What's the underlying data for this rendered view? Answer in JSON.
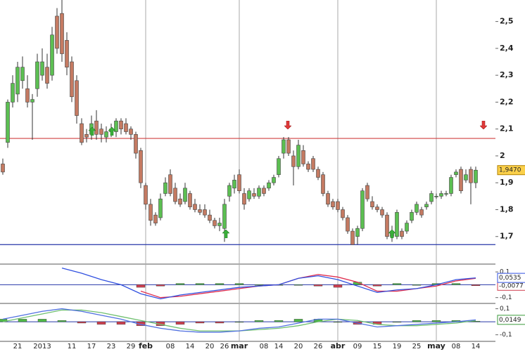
{
  "chart_data": [
    {
      "type": "candlestick",
      "categories": [
        null,
        null,
        null,
        "21",
        null,
        null,
        null,
        null,
        "2013",
        null,
        null,
        null,
        null,
        null,
        "11",
        null,
        null,
        null,
        "17",
        null,
        null,
        null,
        "23",
        null,
        null,
        null,
        "29",
        null,
        null,
        "feb",
        null,
        null,
        null,
        null,
        "08",
        null,
        null,
        null,
        "14",
        null,
        null,
        null,
        "20",
        null,
        null,
        "26",
        null,
        null,
        "mar",
        null,
        null,
        null,
        null,
        "08",
        null,
        null,
        "14",
        null,
        null,
        null,
        "20",
        null,
        null,
        null,
        "26",
        null,
        null,
        null,
        "abr",
        null,
        null,
        null,
        "09",
        null,
        null,
        null,
        "15",
        null,
        null,
        null,
        "19",
        null,
        null,
        null,
        "25",
        null,
        null,
        null,
        "may",
        null,
        null,
        null,
        "08",
        null,
        null,
        null,
        "14"
      ],
      "values": [
        [
          1.97,
          1.99,
          1.93,
          1.94
        ],
        [
          2.05,
          2.21,
          2.03,
          2.2
        ],
        [
          2.2,
          2.3,
          2.18,
          2.27
        ],
        [
          2.23,
          2.35,
          2.2,
          2.33
        ],
        [
          2.28,
          2.37,
          2.25,
          2.33
        ],
        [
          2.25,
          2.3,
          2.18,
          2.2
        ],
        [
          2.2,
          2.23,
          2.06,
          2.21
        ],
        [
          2.25,
          2.38,
          2.22,
          2.35
        ],
        [
          2.3,
          2.4,
          2.28,
          2.35
        ],
        [
          2.33,
          2.38,
          2.25,
          2.27
        ],
        [
          2.3,
          2.48,
          2.28,
          2.45
        ],
        [
          2.52,
          2.55,
          2.38,
          2.4
        ],
        [
          2.53,
          2.58,
          2.35,
          2.38
        ],
        [
          2.43,
          2.46,
          2.3,
          2.33
        ],
        [
          2.35,
          2.37,
          2.2,
          2.22
        ],
        [
          2.28,
          2.3,
          2.12,
          2.15
        ],
        [
          2.12,
          2.14,
          2.04,
          2.05
        ],
        [
          2.08,
          2.1,
          2.05,
          2.07
        ],
        [
          2.08,
          2.15,
          2.06,
          2.12
        ],
        [
          2.13,
          2.17,
          2.06,
          2.08
        ],
        [
          2.1,
          2.12,
          2.05,
          2.08
        ],
        [
          2.07,
          2.11,
          2.05,
          2.09
        ],
        [
          2.09,
          2.12,
          2.07,
          2.1
        ],
        [
          2.09,
          2.14,
          2.07,
          2.13
        ],
        [
          2.13,
          2.14,
          2.08,
          2.1
        ],
        [
          2.12,
          2.14,
          2.08,
          2.09
        ],
        [
          2.1,
          2.11,
          2.06,
          2.08
        ],
        [
          2.08,
          2.09,
          1.99,
          2.01
        ],
        [
          2.02,
          2.03,
          1.88,
          1.9
        ],
        [
          1.89,
          1.9,
          1.8,
          1.82
        ],
        [
          1.82,
          1.84,
          1.74,
          1.76
        ],
        [
          1.78,
          1.79,
          1.74,
          1.75
        ],
        [
          1.77,
          1.86,
          1.76,
          1.84
        ],
        [
          1.86,
          1.92,
          1.85,
          1.9
        ],
        [
          1.93,
          1.95,
          1.85,
          1.86
        ],
        [
          1.88,
          1.9,
          1.82,
          1.83
        ],
        [
          1.84,
          1.86,
          1.81,
          1.82
        ],
        [
          1.83,
          1.9,
          1.82,
          1.88
        ],
        [
          1.86,
          1.87,
          1.8,
          1.81
        ],
        [
          1.82,
          1.84,
          1.79,
          1.8
        ],
        [
          1.8,
          1.82,
          1.78,
          1.79
        ],
        [
          1.8,
          1.82,
          1.77,
          1.78
        ],
        [
          1.78,
          1.8,
          1.75,
          1.76
        ],
        [
          1.76,
          1.77,
          1.73,
          1.74
        ],
        [
          1.74,
          1.77,
          1.72,
          1.75
        ],
        [
          1.73,
          1.84,
          1.68,
          1.82
        ],
        [
          1.85,
          1.9,
          1.83,
          1.89
        ],
        [
          1.88,
          1.93,
          1.86,
          1.91
        ],
        [
          1.93,
          1.95,
          1.86,
          1.87
        ],
        [
          1.86,
          1.88,
          1.8,
          1.82
        ],
        [
          1.84,
          1.88,
          1.83,
          1.87
        ],
        [
          1.86,
          1.88,
          1.84,
          1.85
        ],
        [
          1.85,
          1.89,
          1.84,
          1.88
        ],
        [
          1.88,
          1.89,
          1.85,
          1.86
        ],
        [
          1.88,
          1.91,
          1.87,
          1.9
        ],
        [
          1.9,
          1.93,
          1.89,
          1.92
        ],
        [
          1.93,
          2.0,
          1.92,
          1.99
        ],
        [
          2.01,
          2.07,
          1.99,
          2.06
        ],
        [
          2.06,
          2.07,
          2.0,
          2.01
        ],
        [
          2.0,
          2.02,
          1.89,
          1.96
        ],
        [
          1.96,
          2.06,
          1.95,
          2.04
        ],
        [
          2.02,
          2.04,
          1.96,
          1.97
        ],
        [
          1.97,
          1.98,
          1.94,
          1.95
        ],
        [
          1.99,
          2.0,
          1.94,
          1.95
        ],
        [
          1.95,
          1.96,
          1.91,
          1.92
        ],
        [
          1.93,
          1.94,
          1.85,
          1.86
        ],
        [
          1.86,
          1.87,
          1.81,
          1.82
        ],
        [
          1.83,
          1.84,
          1.8,
          1.81
        ],
        [
          1.83,
          1.84,
          1.79,
          1.8
        ],
        [
          1.8,
          1.81,
          1.76,
          1.77
        ],
        [
          1.77,
          1.78,
          1.71,
          1.72
        ],
        [
          1.72,
          1.73,
          1.67,
          1.67
        ],
        [
          1.7,
          1.74,
          1.67,
          1.73
        ],
        [
          1.73,
          1.88,
          1.72,
          1.87
        ],
        [
          1.89,
          1.9,
          1.83,
          1.84
        ],
        [
          1.83,
          1.85,
          1.8,
          1.81
        ],
        [
          1.81,
          1.82,
          1.79,
          1.8
        ],
        [
          1.8,
          1.81,
          1.77,
          1.78
        ],
        [
          1.78,
          1.79,
          1.69,
          1.7
        ],
        [
          1.7,
          1.74,
          1.68,
          1.72
        ],
        [
          1.7,
          1.8,
          1.69,
          1.79
        ],
        [
          1.72,
          1.73,
          1.69,
          1.7
        ],
        [
          1.72,
          1.76,
          1.71,
          1.75
        ],
        [
          1.76,
          1.8,
          1.75,
          1.79
        ],
        [
          1.79,
          1.83,
          1.78,
          1.82
        ],
        [
          1.8,
          1.81,
          1.77,
          1.78
        ],
        [
          1.81,
          1.83,
          1.8,
          1.82
        ],
        [
          1.83,
          1.87,
          1.82,
          1.86
        ],
        [
          1.85,
          1.86,
          1.84,
          1.85
        ],
        [
          1.85,
          1.87,
          1.84,
          1.86
        ],
        [
          1.86,
          1.87,
          1.85,
          1.86
        ],
        [
          1.86,
          1.93,
          1.85,
          1.92
        ],
        [
          1.93,
          1.95,
          1.92,
          1.94
        ],
        [
          1.95,
          1.96,
          1.86,
          1.87
        ],
        [
          1.91,
          1.95,
          1.9,
          1.93
        ],
        [
          1.95,
          1.96,
          1.82,
          1.9
        ],
        [
          1.9,
          1.96,
          1.88,
          1.947
        ]
      ],
      "up_color": "#5cbf52",
      "down_color": "#c47a62",
      "last_value_label": "1,9470",
      "hlines": [
        {
          "value": 2.065,
          "color": "#d04040"
        },
        {
          "value": 1.67,
          "color": "#2636a8"
        }
      ],
      "ylim": [
        1.6,
        2.58
      ],
      "yticks": [
        {
          "value": 2.5,
          "label": "2,5"
        },
        {
          "value": 2.4,
          "label": "2,4"
        },
        {
          "value": 2.3,
          "label": "2,3"
        },
        {
          "value": 2.2,
          "label": "2,2"
        },
        {
          "value": 2.1,
          "label": "2,1"
        },
        2,
        {
          "value": 1.9,
          "label": "1,9"
        },
        {
          "value": 1.8,
          "label": "1,8"
        },
        {
          "value": 1.7,
          "label": "1,7"
        }
      ]
    },
    {
      "type": "indicator",
      "x": [
        0,
        4,
        8,
        12,
        16,
        20,
        24,
        28,
        32,
        36,
        40,
        44,
        48,
        52,
        56,
        60,
        64,
        68,
        72,
        76,
        80,
        84,
        88,
        92,
        96
      ],
      "ylim": [
        -0.14,
        0.15
      ],
      "yticks": [
        {
          "value": 0.1,
          "label": "0,1"
        },
        {
          "value": -0.1,
          "label": "-0,1"
        }
      ],
      "series": [
        {
          "type": "bar",
          "color": "#4fb848",
          "negative_color": "#d04050",
          "value_label": "-0,0077",
          "values": [
            null,
            null,
            null,
            null,
            null,
            null,
            null,
            -0.02,
            -0.01,
            0.01,
            0.01,
            0.01,
            0.01,
            0.0,
            0.0,
            0.0,
            -0.01,
            -0.02,
            0.02,
            -0.01,
            0.01,
            0.0,
            0.01,
            0.01,
            -0.0077
          ]
        },
        {
          "type": "line",
          "color": "#e03050",
          "values": [
            null,
            null,
            null,
            null,
            null,
            null,
            null,
            -0.05,
            -0.1,
            -0.09,
            -0.07,
            -0.05,
            -0.03,
            -0.01,
            0.0,
            0.05,
            0.08,
            0.06,
            0.02,
            -0.05,
            -0.05,
            -0.03,
            -0.01,
            0.03,
            0.05
          ]
        },
        {
          "type": "line",
          "color": "#3050e0",
          "value_label": "0,0535",
          "values": [
            null,
            null,
            null,
            0.13,
            0.09,
            0.04,
            0.0,
            -0.07,
            -0.11,
            -0.08,
            -0.06,
            -0.04,
            -0.02,
            -0.01,
            0.0,
            0.05,
            0.07,
            0.04,
            -0.01,
            -0.06,
            -0.04,
            -0.03,
            0.0,
            0.04,
            0.0535
          ]
        }
      ]
    },
    {
      "type": "indicator",
      "x": [
        0,
        4,
        8,
        12,
        16,
        20,
        24,
        28,
        32,
        36,
        40,
        44,
        48,
        52,
        56,
        60,
        64,
        68,
        72,
        76,
        80,
        84,
        88,
        92,
        96
      ],
      "ylim": [
        -0.145,
        0.13
      ],
      "yticks": [
        {
          "value": 0.1,
          "label": "0,1"
        },
        {
          "value": -0.1,
          "label": "-0,1"
        }
      ],
      "series": [
        {
          "type": "bar",
          "color": "#4fb848",
          "negative_color": "#d04050",
          "values": [
            0.02,
            0.02,
            0.02,
            0.01,
            -0.01,
            -0.02,
            -0.02,
            -0.03,
            -0.03,
            -0.02,
            -0.01,
            -0.01,
            0.0,
            0.01,
            0.01,
            0.02,
            0.02,
            0.0,
            -0.02,
            -0.02,
            0.0,
            0.01,
            0.01,
            0.01,
            0.0049
          ]
        },
        {
          "type": "line",
          "color": "#70c070",
          "values": [
            0.0,
            0.03,
            0.06,
            0.09,
            0.09,
            0.07,
            0.04,
            0.01,
            -0.02,
            -0.05,
            -0.07,
            -0.07,
            -0.07,
            -0.06,
            -0.05,
            -0.03,
            0.0,
            0.02,
            0.01,
            -0.02,
            -0.03,
            -0.03,
            -0.02,
            -0.01,
            0.01
          ]
        },
        {
          "type": "line",
          "color": "#5070e0",
          "label_color": "#3a9a3a",
          "value_label": "0,0149",
          "values": [
            0.02,
            0.05,
            0.08,
            0.1,
            0.08,
            0.05,
            0.02,
            -0.02,
            -0.05,
            -0.07,
            -0.08,
            -0.08,
            -0.07,
            -0.05,
            -0.04,
            -0.01,
            0.02,
            0.02,
            -0.01,
            -0.04,
            -0.03,
            -0.02,
            -0.01,
            0.0,
            0.0149
          ]
        }
      ]
    }
  ]
}
